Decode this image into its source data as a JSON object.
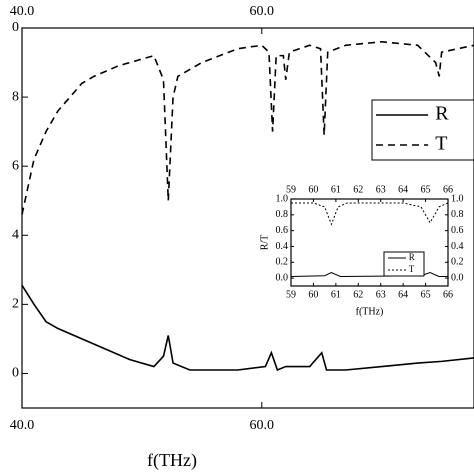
{
  "chart_data": [
    {
      "type": "line",
      "xlabel": "f(THz)",
      "xlim": [
        40,
        77.7
      ],
      "ylim": [
        -0.1,
        1.0
      ],
      "xticks": [
        {
          "value": 40,
          "label": "40.0"
        },
        {
          "value": 60,
          "label": "60.0"
        }
      ],
      "yticks": [
        0,
        {
          "value": 0.2,
          "label": "2"
        },
        {
          "value": 0.4,
          "label": "4"
        },
        {
          "value": 0.6,
          "label": "6"
        },
        {
          "value": 0.8,
          "label": "8"
        },
        {
          "value": 1.0,
          "label": "0"
        }
      ],
      "series": [
        {
          "name": "R",
          "color": "#000000",
          "style": "solid",
          "x": [
            40,
            41,
            42,
            43,
            45,
            47,
            49,
            51,
            51.8,
            52.2,
            52.6,
            54,
            58,
            60.3,
            60.8,
            61.3,
            62,
            64,
            65,
            65.4,
            67,
            70,
            73,
            75,
            77.7
          ],
          "values": [
            0.255,
            0.2,
            0.15,
            0.13,
            0.1,
            0.07,
            0.04,
            0.02,
            0.05,
            0.11,
            0.03,
            0.01,
            0.01,
            0.02,
            0.06,
            0.01,
            0.02,
            0.02,
            0.06,
            0.01,
            0.01,
            0.02,
            0.03,
            0.035,
            0.045
          ]
        },
        {
          "name": "T",
          "color": "#000000",
          "style": "dashed",
          "x": [
            40,
            41,
            42,
            43,
            44,
            45,
            46,
            48,
            50,
            51,
            51.8,
            52.2,
            52.6,
            53,
            55,
            58,
            60,
            60.6,
            60.9,
            61.2,
            61.8,
            62,
            62.3,
            64,
            64.9,
            65.2,
            65.5,
            67,
            70,
            73,
            74.5,
            74.8,
            75,
            77.7
          ],
          "values": [
            0.46,
            0.62,
            0.7,
            0.76,
            0.8,
            0.84,
            0.86,
            0.89,
            0.91,
            0.92,
            0.85,
            0.5,
            0.8,
            0.86,
            0.9,
            0.94,
            0.95,
            0.93,
            0.7,
            0.92,
            0.92,
            0.85,
            0.93,
            0.95,
            0.94,
            0.69,
            0.93,
            0.95,
            0.96,
            0.95,
            0.9,
            0.86,
            0.93,
            0.95
          ]
        }
      ]
    },
    {
      "type": "line",
      "xlabel": "f(THz)",
      "ylabel": "R/T",
      "xlim": [
        59,
        66
      ],
      "ylim": [
        -0.1,
        1.0
      ],
      "xticks": [
        59,
        60,
        61,
        62,
        63,
        64,
        65,
        66
      ],
      "yticks": [
        {
          "value": 0,
          "label": "0.0"
        },
        {
          "value": 0.2,
          "label": "0.2"
        },
        {
          "value": 0.4,
          "label": "0.4"
        },
        {
          "value": 0.6,
          "label": "0.6"
        },
        {
          "value": 0.8,
          "label": "0.8"
        },
        {
          "value": 1.0,
          "label": "1.0"
        }
      ],
      "series": [
        {
          "name": "R",
          "color": "#000000",
          "style": "solid",
          "x": [
            59,
            60.5,
            60.8,
            61.2,
            64.8,
            65.2,
            65.6,
            66
          ],
          "values": [
            0.02,
            0.03,
            0.07,
            0.02,
            0.03,
            0.07,
            0.02,
            0.02
          ]
        },
        {
          "name": "T",
          "color": "#000000",
          "style": "dashed",
          "x": [
            59,
            60,
            60.5,
            60.8,
            61.1,
            61.5,
            64,
            64.8,
            65.2,
            65.6,
            66
          ],
          "values": [
            0.95,
            0.95,
            0.9,
            0.68,
            0.9,
            0.95,
            0.95,
            0.9,
            0.7,
            0.9,
            0.95
          ]
        }
      ]
    }
  ]
}
